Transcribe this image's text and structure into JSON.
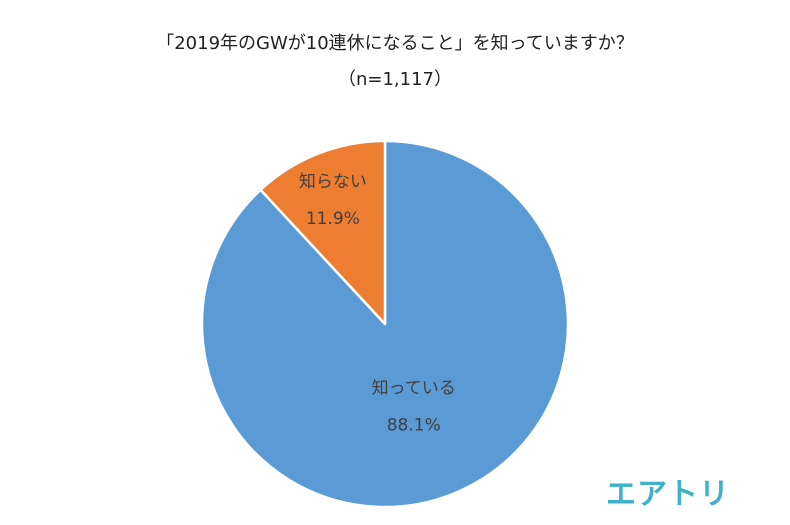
{
  "chart_data": {
    "type": "pie",
    "title": "「2019年のGWが10連休になること」を知っていますか？",
    "subtitle": "（n=1,117）",
    "start_angle_deg": 0,
    "direction": "clockwise",
    "slices": [
      {
        "label": "知っている",
        "value": 88.1,
        "value_label": "88.1%",
        "color": "#5b9bd5"
      },
      {
        "label": "知らない",
        "value": 11.9,
        "value_label": "11.9%",
        "color": "#ed7d31"
      }
    ]
  },
  "colors": {
    "slice_border": "#ffffff",
    "label_text": "#404040",
    "logo": "#3fb2c9"
  },
  "logo": {
    "text": "エアトリ"
  }
}
